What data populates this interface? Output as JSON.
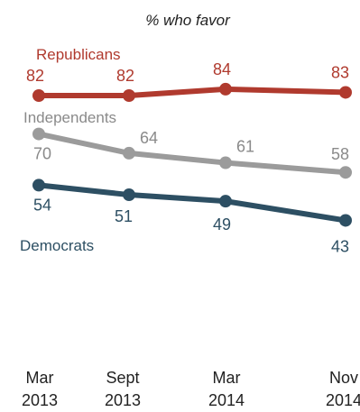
{
  "chart_data": {
    "type": "line",
    "subtitle": "% who favor",
    "categories": [
      "Mar 2013",
      "Sept 2013",
      "Mar 2014",
      "Nov 2014"
    ],
    "x_tick_lines": [
      [
        "Mar",
        "2013"
      ],
      [
        "Sept",
        "2013"
      ],
      [
        "Mar",
        "2014"
      ],
      [
        "Nov",
        "2014"
      ]
    ],
    "series": [
      {
        "name": "Republicans",
        "values": [
          82,
          82,
          84,
          83
        ],
        "color": "#b03a2e"
      },
      {
        "name": "Independents",
        "values": [
          70,
          64,
          61,
          58
        ],
        "color": "#9b9b9b"
      },
      {
        "name": "Democrats",
        "values": [
          54,
          51,
          49,
          43
        ],
        "color": "#2d4f63"
      }
    ],
    "value_label_color": {
      "Republicans": "#b03a2e",
      "Independents": "#8a8a8a",
      "Democrats": "#2d4f63"
    },
    "grid": false,
    "legend": "inline labels"
  }
}
